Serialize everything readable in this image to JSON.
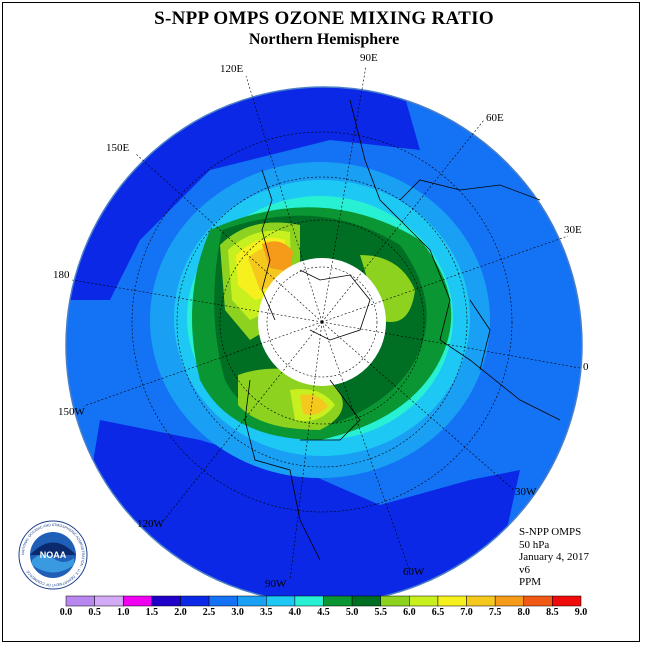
{
  "title": "S-NPP OMPS OZONE MIXING RATIO",
  "subtitle": "Northern Hemisphere",
  "longitude_labels": [
    "90E",
    "60E",
    "30E",
    "0",
    "30W",
    "60W",
    "90W",
    "120W",
    "150W",
    "180",
    "150E",
    "120E"
  ],
  "info": {
    "line1": "S-NPP OMPS",
    "line2": "50 hPa",
    "line3": "January 4, 2017",
    "line4": "v6",
    "line5": "PPM"
  },
  "colorbar": {
    "labels": [
      "0.0",
      "0.5",
      "1.0",
      "1.5",
      "2.0",
      "2.5",
      "3.0",
      "3.5",
      "4.0",
      "4.5",
      "5.0",
      "5.5",
      "6.0",
      "6.5",
      "7.0",
      "7.5",
      "8.0",
      "8.5",
      "9.0"
    ],
    "colors": [
      "#b987f0",
      "#d2aaf5",
      "#f000f0",
      "#1e00c8",
      "#0a28e6",
      "#1473f5",
      "#19a0f5",
      "#1ec8f5",
      "#28f0d2",
      "#0a9632",
      "#006e23",
      "#8cd21e",
      "#c8f01e",
      "#f5f01e",
      "#f5c81e",
      "#f59b19",
      "#f05a14",
      "#f00a0a",
      "#8c5028"
    ]
  },
  "noaa_logo": {
    "text": "NOAA",
    "ring_text": "NATIONAL OCEANIC AND ATMOSPHERIC ADMINISTRATION · U.S. DEPARTMENT OF COMMERCE"
  },
  "legend_unit": "PPM"
}
